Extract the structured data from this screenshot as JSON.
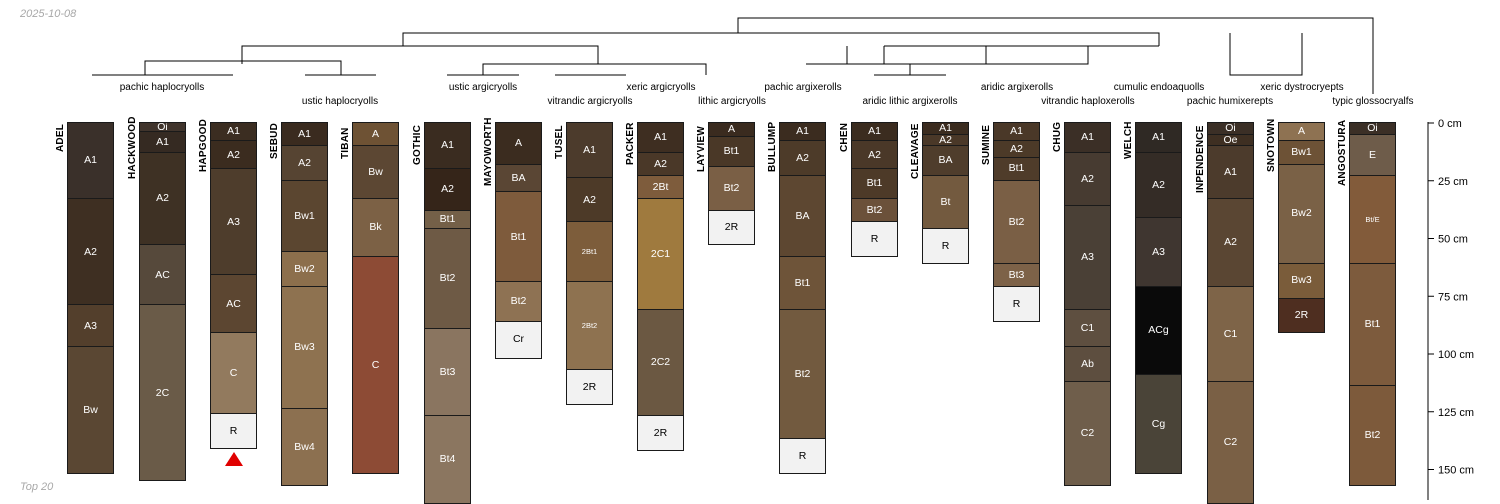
{
  "figure": {
    "date": "2025-10-08",
    "footer": "Top 20"
  },
  "colors": {
    "tree_line": "#000000",
    "horizon_border": "#1a1a1a",
    "truncation_marker": "#e00000"
  },
  "depth_axis": {
    "unit": "cm",
    "ticks": [
      "0 cm",
      "25 cm",
      "50 cm",
      "75 cm",
      "100 cm",
      "125 cm",
      "150 cm"
    ]
  },
  "taxa": [
    "pachic haplocryolls",
    "ustic haplocryolls",
    "ustic argicryolls",
    "vitrandic argicryolls",
    "xeric argicryolls",
    "lithic argicryolls",
    "pachic argixerolls",
    "aridic lithic argixerolls",
    "aridic argixerolls",
    "vitrandic haploxerolls",
    "cumulic endoaquolls",
    "pachic humixerepts",
    "xeric dystrocryepts",
    "typic glossocryalfs"
  ],
  "profiles": [
    {
      "name": "ADEL",
      "horizons": [
        {
          "label": "A1",
          "top": 0,
          "bottom": 33,
          "color": "#3a302a"
        },
        {
          "label": "A2",
          "top": 33,
          "bottom": 79,
          "color": "#3e2f22"
        },
        {
          "label": "A3",
          "top": 79,
          "bottom": 97,
          "color": "#533f2c"
        },
        {
          "label": "Bw",
          "top": 97,
          "bottom": 152,
          "color": "#5a4733"
        }
      ]
    },
    {
      "name": "HACKWOOD",
      "horizons": [
        {
          "label": "Oi",
          "top": 0,
          "bottom": 4,
          "color": "#40342c"
        },
        {
          "label": "A1",
          "top": 4,
          "bottom": 13,
          "color": "#352a22"
        },
        {
          "label": "A2",
          "top": 13,
          "bottom": 53,
          "color": "#3e3124"
        },
        {
          "label": "AC",
          "top": 53,
          "bottom": 79,
          "color": "#56493b"
        },
        {
          "label": "2C",
          "top": 79,
          "bottom": 155,
          "color": "#6a5b48"
        }
      ]
    },
    {
      "name": "HAPGOOD",
      "horizons": [
        {
          "label": "A1",
          "top": 0,
          "bottom": 8,
          "color": "#3b2d21"
        },
        {
          "label": "A2",
          "top": 8,
          "bottom": 20,
          "color": "#3b2c1f"
        },
        {
          "label": "A3",
          "top": 20,
          "bottom": 66,
          "color": "#4e3d2c"
        },
        {
          "label": "AC",
          "top": 66,
          "bottom": 91,
          "color": "#5c4631"
        },
        {
          "label": "C",
          "top": 91,
          "bottom": 126,
          "color": "#927a5e"
        },
        {
          "label": "R",
          "top": 126,
          "bottom": 141,
          "color": "#f2f2f2"
        }
      ]
    },
    {
      "name": "SEBUD",
      "horizons": [
        {
          "label": "A1",
          "top": 0,
          "bottom": 10,
          "color": "#3a2b1f"
        },
        {
          "label": "A2",
          "top": 10,
          "bottom": 25,
          "color": "#564432"
        },
        {
          "label": "Bw1",
          "top": 25,
          "bottom": 56,
          "color": "#5b4630"
        },
        {
          "label": "Bw2",
          "top": 56,
          "bottom": 71,
          "color": "#8c6f4c"
        },
        {
          "label": "Bw3",
          "top": 71,
          "bottom": 124,
          "color": "#8e7250"
        },
        {
          "label": "Bw4",
          "top": 124,
          "bottom": 157,
          "color": "#8c7050"
        }
      ]
    },
    {
      "name": "TIBAN",
      "horizons": [
        {
          "label": "A",
          "top": 0,
          "bottom": 10,
          "color": "#6e5234"
        },
        {
          "label": "Bw",
          "top": 10,
          "bottom": 33,
          "color": "#5c4733"
        },
        {
          "label": "Bk",
          "top": 33,
          "bottom": 58,
          "color": "#7c6145"
        },
        {
          "label": "C",
          "top": 58,
          "bottom": 152,
          "color": "#8d4b35"
        }
      ]
    },
    {
      "name": "GOTHIC",
      "horizons": [
        {
          "label": "A1",
          "top": 0,
          "bottom": 20,
          "color": "#3a2c20"
        },
        {
          "label": "A2",
          "top": 20,
          "bottom": 38,
          "color": "#352519"
        },
        {
          "label": "Bt1",
          "top": 38,
          "bottom": 46,
          "color": "#746048"
        },
        {
          "label": "Bt2",
          "top": 46,
          "bottom": 89,
          "color": "#6e5a45"
        },
        {
          "label": "Bt3",
          "top": 89,
          "bottom": 127,
          "color": "#8a7560"
        },
        {
          "label": "Bt4",
          "top": 127,
          "bottom": 165,
          "color": "#8b7660"
        }
      ]
    },
    {
      "name": "MAYOWORTH",
      "horizons": [
        {
          "label": "A",
          "top": 0,
          "bottom": 18,
          "color": "#3b2c1f"
        },
        {
          "label": "BA",
          "top": 18,
          "bottom": 30,
          "color": "#5a4634"
        },
        {
          "label": "Bt1",
          "top": 30,
          "bottom": 69,
          "color": "#7e5b3c"
        },
        {
          "label": "Bt2",
          "top": 69,
          "bottom": 86,
          "color": "#8e7253"
        },
        {
          "label": "Cr",
          "top": 86,
          "bottom": 102,
          "color": "#f2f2f2"
        }
      ]
    },
    {
      "name": "TUSEL",
      "horizons": [
        {
          "label": "A1",
          "top": 0,
          "bottom": 24,
          "color": "#4c3b2c"
        },
        {
          "label": "A2",
          "top": 24,
          "bottom": 43,
          "color": "#4d3a28"
        },
        {
          "label": "2Bt1",
          "top": 43,
          "bottom": 69,
          "color": "#7d5d3b",
          "small": true
        },
        {
          "label": "2Bt2",
          "top": 69,
          "bottom": 107,
          "color": "#8e7250",
          "small": true
        },
        {
          "label": "2R",
          "top": 107,
          "bottom": 122,
          "color": "#f2f2f2"
        }
      ]
    },
    {
      "name": "PACKER",
      "horizons": [
        {
          "label": "A1",
          "top": 0,
          "bottom": 13,
          "color": "#3e2e21"
        },
        {
          "label": "A2",
          "top": 13,
          "bottom": 23,
          "color": "#4a3828"
        },
        {
          "label": "2Bt",
          "top": 23,
          "bottom": 33,
          "color": "#7e5c3c"
        },
        {
          "label": "2C1",
          "top": 33,
          "bottom": 81,
          "color": "#9f7a3e"
        },
        {
          "label": "2C2",
          "top": 81,
          "bottom": 127,
          "color": "#6b5842"
        },
        {
          "label": "2R",
          "top": 127,
          "bottom": 142,
          "color": "#f2f2f2"
        }
      ]
    },
    {
      "name": "LAYVIEW",
      "horizons": [
        {
          "label": "A",
          "top": 0,
          "bottom": 6,
          "color": "#3a2b1f"
        },
        {
          "label": "Bt1",
          "top": 6,
          "bottom": 19,
          "color": "#4a3827"
        },
        {
          "label": "Bt2",
          "top": 19,
          "bottom": 38,
          "color": "#7a5f45"
        },
        {
          "label": "2R",
          "top": 38,
          "bottom": 53,
          "color": "#f2f2f2"
        }
      ]
    },
    {
      "name": "BULLUMP",
      "horizons": [
        {
          "label": "A1",
          "top": 0,
          "bottom": 8,
          "color": "#3b2c1f"
        },
        {
          "label": "A2",
          "top": 8,
          "bottom": 23,
          "color": "#4d3b29"
        },
        {
          "label": "BA",
          "top": 23,
          "bottom": 58,
          "color": "#5d4731"
        },
        {
          "label": "Bt1",
          "top": 58,
          "bottom": 81,
          "color": "#6e5439"
        },
        {
          "label": "Bt2",
          "top": 81,
          "bottom": 137,
          "color": "#725a3f"
        },
        {
          "label": "R",
          "top": 137,
          "bottom": 152,
          "color": "#f2f2f2"
        }
      ]
    },
    {
      "name": "CHEN",
      "horizons": [
        {
          "label": "A1",
          "top": 0,
          "bottom": 8,
          "color": "#3b2c1f"
        },
        {
          "label": "A2",
          "top": 8,
          "bottom": 20,
          "color": "#4a3828"
        },
        {
          "label": "Bt1",
          "top": 20,
          "bottom": 33,
          "color": "#4d3a28"
        },
        {
          "label": "Bt2",
          "top": 33,
          "bottom": 43,
          "color": "#6b513a"
        },
        {
          "label": "R",
          "top": 43,
          "bottom": 58,
          "color": "#f2f2f2"
        }
      ]
    },
    {
      "name": "CLEAVAGE",
      "horizons": [
        {
          "label": "A1",
          "top": 0,
          "bottom": 5,
          "color": "#3b2c1f"
        },
        {
          "label": "A2",
          "top": 5,
          "bottom": 10,
          "color": "#4a3828"
        },
        {
          "label": "BA",
          "top": 10,
          "bottom": 23,
          "color": "#4f3d2c"
        },
        {
          "label": "Bt",
          "top": 23,
          "bottom": 46,
          "color": "#735a3f"
        },
        {
          "label": "R",
          "top": 46,
          "bottom": 61,
          "color": "#f2f2f2"
        }
      ]
    },
    {
      "name": "SUMINE",
      "horizons": [
        {
          "label": "A1",
          "top": 0,
          "bottom": 8,
          "color": "#4a3828"
        },
        {
          "label": "A2",
          "top": 8,
          "bottom": 15,
          "color": "#4c3a28"
        },
        {
          "label": "Bt1",
          "top": 15,
          "bottom": 25,
          "color": "#4f3c2a"
        },
        {
          "label": "Bt2",
          "top": 25,
          "bottom": 61,
          "color": "#7a5f45"
        },
        {
          "label": "Bt3",
          "top": 61,
          "bottom": 71,
          "color": "#7d6248"
        },
        {
          "label": "R",
          "top": 71,
          "bottom": 86,
          "color": "#f2f2f2"
        }
      ]
    },
    {
      "name": "CHUG",
      "horizons": [
        {
          "label": "A1",
          "top": 0,
          "bottom": 13,
          "color": "#3b2f26"
        },
        {
          "label": "A2",
          "top": 13,
          "bottom": 36,
          "color": "#473b31"
        },
        {
          "label": "A3",
          "top": 36,
          "bottom": 81,
          "color": "#4a4036"
        },
        {
          "label": "C1",
          "top": 81,
          "bottom": 97,
          "color": "#5e4f40"
        },
        {
          "label": "Ab",
          "top": 97,
          "bottom": 112,
          "color": "#5d4e3f"
        },
        {
          "label": "C2",
          "top": 112,
          "bottom": 157,
          "color": "#6f5e4b"
        }
      ]
    },
    {
      "name": "WELCH",
      "horizons": [
        {
          "label": "A1",
          "top": 0,
          "bottom": 13,
          "color": "#2f2924"
        },
        {
          "label": "A2",
          "top": 13,
          "bottom": 41,
          "color": "#342c26"
        },
        {
          "label": "A3",
          "top": 41,
          "bottom": 71,
          "color": "#3f3630"
        },
        {
          "label": "ACg",
          "top": 71,
          "bottom": 109,
          "color": "#0a0a0a"
        },
        {
          "label": "Cg",
          "top": 109,
          "bottom": 152,
          "color": "#4a4438"
        }
      ]
    },
    {
      "name": "INPENDENCE",
      "horizons": [
        {
          "label": "Oi",
          "top": 0,
          "bottom": 5,
          "color": "#3b2f26"
        },
        {
          "label": "Oe",
          "top": 5,
          "bottom": 10,
          "color": "#3e2f22"
        },
        {
          "label": "A1",
          "top": 10,
          "bottom": 33,
          "color": "#4c3b2c"
        },
        {
          "label": "A2",
          "top": 33,
          "bottom": 71,
          "color": "#5a4633"
        },
        {
          "label": "C1",
          "top": 71,
          "bottom": 112,
          "color": "#7e6448"
        },
        {
          "label": "C2",
          "top": 112,
          "bottom": 165,
          "color": "#7a6045"
        }
      ]
    },
    {
      "name": "SNOTOWN",
      "horizons": [
        {
          "label": "A",
          "top": 0,
          "bottom": 8,
          "color": "#8e7252"
        },
        {
          "label": "Bw1",
          "top": 8,
          "bottom": 18,
          "color": "#6d5236"
        },
        {
          "label": "Bw2",
          "top": 18,
          "bottom": 61,
          "color": "#7a6146"
        },
        {
          "label": "Bw3",
          "top": 61,
          "bottom": 76,
          "color": "#7a5c3a"
        },
        {
          "label": "2R",
          "top": 76,
          "bottom": 91,
          "color": "#4e2e20"
        }
      ]
    },
    {
      "name": "ANGOSTURA",
      "horizons": [
        {
          "label": "Oi",
          "top": 0,
          "bottom": 5,
          "color": "#3b2f26"
        },
        {
          "label": "E",
          "top": 5,
          "bottom": 23,
          "color": "#6e5c4a"
        },
        {
          "label": "Bt/E",
          "top": 23,
          "bottom": 61,
          "color": "#825b3a",
          "small": true
        },
        {
          "label": "Bt1",
          "top": 61,
          "bottom": 114,
          "color": "#7d5b3d"
        },
        {
          "label": "Bt2",
          "top": 114,
          "bottom": 157,
          "color": "#7d5a3b"
        }
      ]
    }
  ]
}
